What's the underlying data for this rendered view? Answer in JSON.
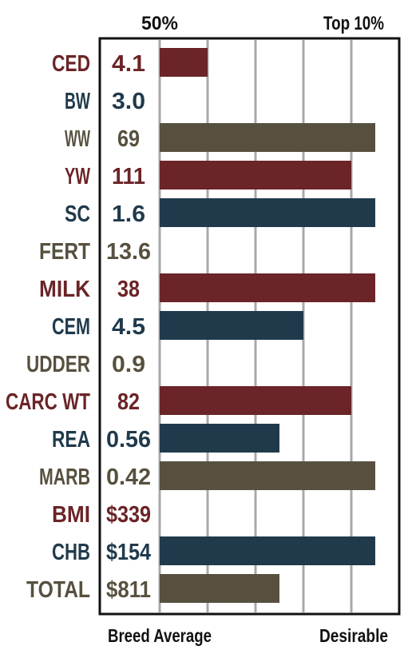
{
  "chart_data": {
    "type": "bar",
    "orientation": "horizontal",
    "header_labels": [
      "50%",
      "Top 10%"
    ],
    "footer_labels": [
      "Breed Average",
      "Desirable"
    ],
    "xlim": [
      0,
      10
    ],
    "gridlines": 5,
    "rows": [
      {
        "trait": "CED",
        "value": "4.1",
        "bar": 2,
        "color": "#6b2427"
      },
      {
        "trait": "BW",
        "value": "3.0",
        "bar": null,
        "color": "#203a4c"
      },
      {
        "trait": "WW",
        "value": "69",
        "bar": 9,
        "color": "#57503f"
      },
      {
        "trait": "YW",
        "value": "111",
        "bar": 8,
        "color": "#6b2427"
      },
      {
        "trait": "SC",
        "value": "1.6",
        "bar": 9,
        "color": "#203a4c"
      },
      {
        "trait": "FERT",
        "value": "13.6",
        "bar": null,
        "color": "#57503f"
      },
      {
        "trait": "MILK",
        "value": "38",
        "bar": 9,
        "color": "#6b2427"
      },
      {
        "trait": "CEM",
        "value": "4.5",
        "bar": 6,
        "color": "#203a4c"
      },
      {
        "trait": "UDDER",
        "value": "0.9",
        "bar": null,
        "color": "#57503f"
      },
      {
        "trait": "CARC WT",
        "value": "82",
        "bar": 8,
        "color": "#6b2427"
      },
      {
        "trait": "REA",
        "value": "0.56",
        "bar": 5,
        "color": "#203a4c"
      },
      {
        "trait": "MARB",
        "value": "0.42",
        "bar": 9,
        "color": "#57503f"
      },
      {
        "trait": "BMI",
        "value": "$339",
        "bar": null,
        "color": "#6b2427"
      },
      {
        "trait": "CHB",
        "value": "$154",
        "bar": 9,
        "color": "#203a4c"
      },
      {
        "trait": "TOTAL",
        "value": "$811",
        "bar": 5,
        "color": "#57503f"
      }
    ]
  }
}
